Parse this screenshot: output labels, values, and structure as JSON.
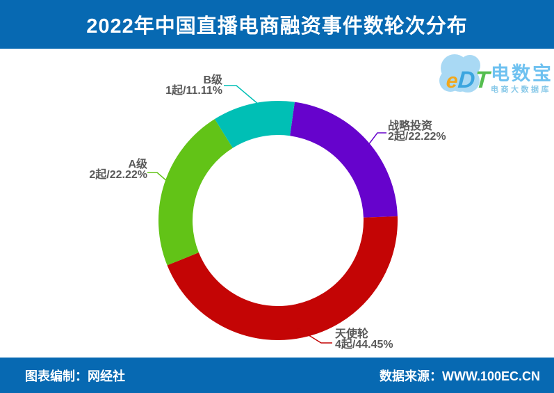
{
  "header": {
    "title": "2022年中国直播电商融资事件数轮次分布"
  },
  "logo": {
    "brand_letters": [
      {
        "char": "e",
        "color": "#F2A71B"
      },
      {
        "char": "D",
        "color": "#3BA5DF"
      },
      {
        "char": "T",
        "color": "#55BE4F"
      }
    ],
    "brand_name": "电数宝",
    "brand_subtitle": "电商大数据库",
    "cloud_color": "#A9D9F4",
    "name_color": "#6EC1F0",
    "subtitle_color": "#86C8E8"
  },
  "chart_data": {
    "type": "pie",
    "donut": true,
    "title": "2022年中国直播电商融资事件数轮次分布",
    "unit": "起",
    "total_events": 9,
    "start_angle_deg": 8,
    "clockwise": true,
    "legend_position": "callout-labels",
    "label_text_color": "#595959",
    "slices": [
      {
        "label": "战略投资",
        "count": 2,
        "percent": 22.22,
        "value_label": "2起/22.22%",
        "color": "#6603CC"
      },
      {
        "label": "天使轮",
        "count": 4,
        "percent": 44.45,
        "value_label": "4起/44.45%",
        "color": "#C40505"
      },
      {
        "label": "A级",
        "count": 2,
        "percent": 22.22,
        "value_label": "2起/22.22%",
        "color": "#62C317"
      },
      {
        "label": "B级",
        "count": 1,
        "percent": 11.11,
        "value_label": "1起/11.11%",
        "color": "#00BFB5"
      }
    ]
  },
  "footer": {
    "left": "图表编制：网经社",
    "right": "数据来源：WWW.100EC.CN"
  },
  "colors": {
    "banner_blue": "#0769B2",
    "background": "#FFFFFF",
    "title_text": "#FFFFFF"
  }
}
